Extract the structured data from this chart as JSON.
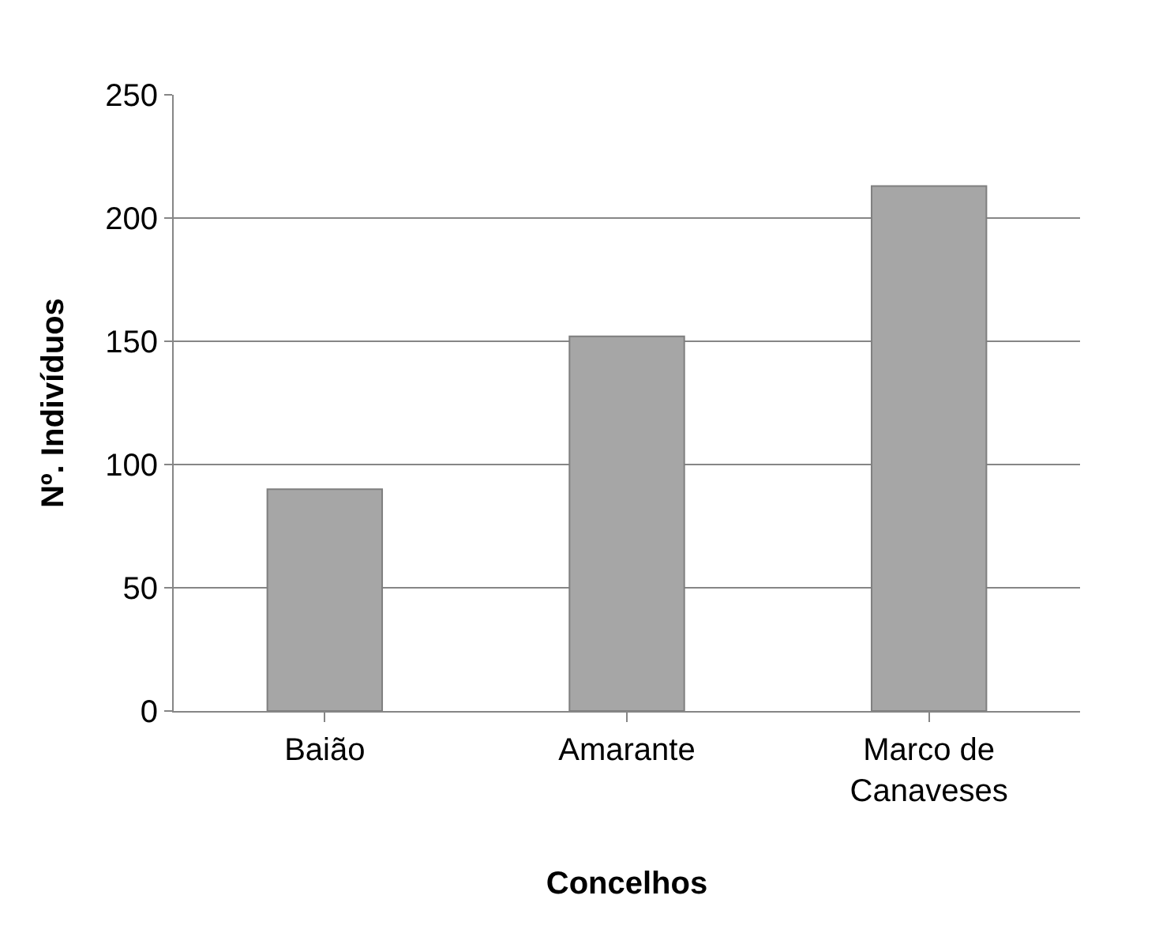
{
  "chart_data": {
    "type": "bar",
    "xlabel": "Concelhos",
    "ylabel": "Nº. Indivíduos",
    "categories": [
      "Baião",
      "Amarante",
      "Marco de Canaveses"
    ],
    "values": [
      90,
      152,
      213
    ],
    "color": "#a6a6a6",
    "ylim": [
      0,
      250
    ],
    "yticks": [
      0,
      50,
      100,
      150,
      200,
      250
    ],
    "grid": "y",
    "legend": false
  }
}
